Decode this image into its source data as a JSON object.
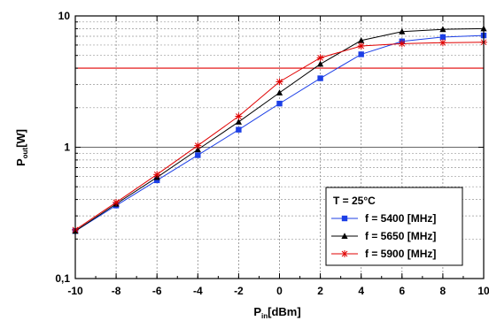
{
  "chart_data": {
    "type": "line",
    "x": [
      -10,
      -8,
      -6,
      -4,
      -2,
      0,
      2,
      4,
      6,
      8,
      10
    ],
    "xlim": [
      -10,
      10
    ],
    "ylim": [
      0.1,
      10
    ],
    "yscale": "log",
    "x_ticks": [
      "-10",
      "-8",
      "-6",
      "-4",
      "-2",
      "0",
      "2",
      "4",
      "6",
      "8",
      "10"
    ],
    "y_ticks": [
      {
        "value": 0.1,
        "label": "0,1"
      },
      {
        "value": 1,
        "label": "1"
      },
      {
        "value": 10,
        "label": "10"
      }
    ],
    "xlabel_main": "P",
    "xlabel_sub": "in",
    "xlabel_unit": "[dBm]",
    "ylabel_main": "P",
    "ylabel_sub": "out",
    "ylabel_unit": "[W]",
    "grid": true,
    "legend_position": "bottom-right",
    "legend_header": "T = 25°C",
    "reference_line": {
      "y": 4.0,
      "color": "#e00000"
    },
    "series": [
      {
        "name": "f = 5400 [MHz]",
        "color": "#1c3fe6",
        "marker": "square",
        "values": [
          0.23,
          0.36,
          0.56,
          0.87,
          1.36,
          2.15,
          3.35,
          5.1,
          6.4,
          6.9,
          7.1
        ]
      },
      {
        "name": "f = 5650 [MHz]",
        "color": "#000000",
        "marker": "triangle",
        "values": [
          0.23,
          0.37,
          0.59,
          0.96,
          1.56,
          2.6,
          4.3,
          6.5,
          7.6,
          7.9,
          8.0
        ]
      },
      {
        "name": "f = 5900 [MHz]",
        "color": "#e00000",
        "marker": "star",
        "values": [
          0.235,
          0.38,
          0.62,
          1.03,
          1.72,
          3.15,
          4.8,
          5.9,
          6.15,
          6.25,
          6.3
        ]
      }
    ]
  }
}
